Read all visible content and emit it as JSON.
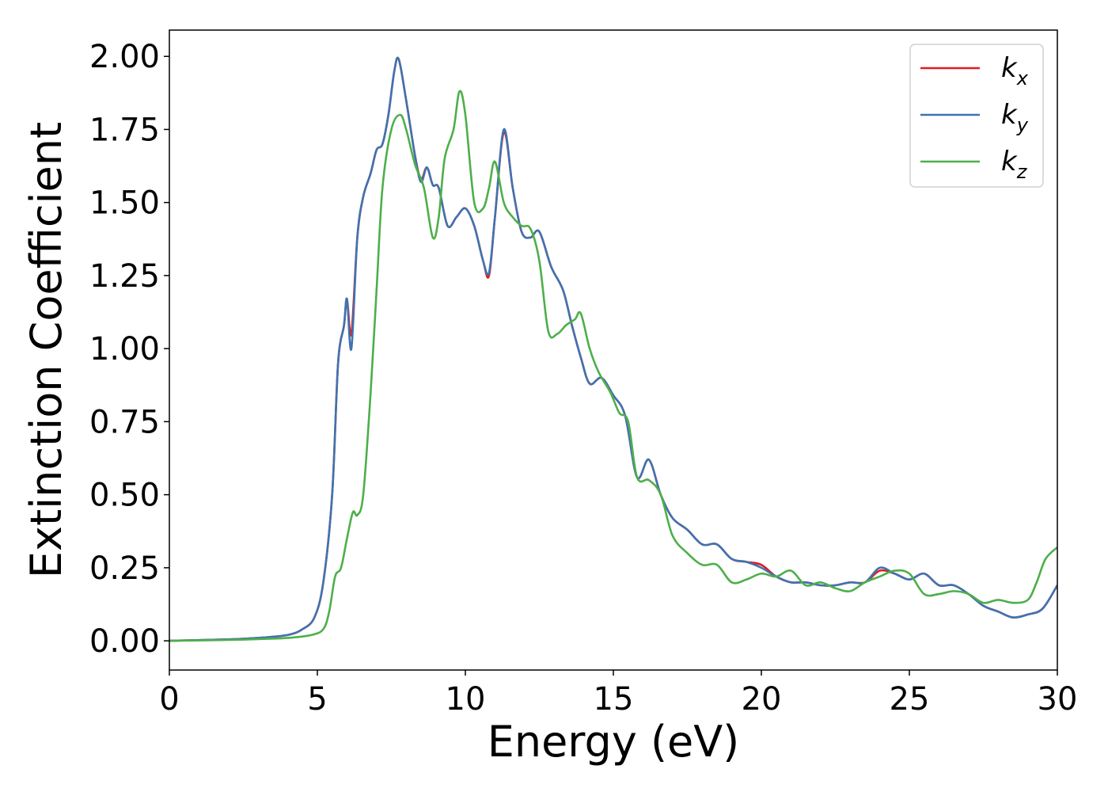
{
  "chart_data": {
    "type": "line",
    "xlabel": "Energy (eV)",
    "ylabel": "Extinction Coefficient",
    "xlim": [
      0,
      30
    ],
    "ylim": [
      -0.1,
      2.09
    ],
    "xticks": [
      "0",
      "5",
      "10",
      "15",
      "20",
      "25",
      "30"
    ],
    "yticks": [
      "0.00",
      "0.25",
      "0.50",
      "0.75",
      "1.00",
      "1.25",
      "1.50",
      "1.75",
      "2.00"
    ],
    "grid": false,
    "legend_position": "top-right",
    "series": [
      {
        "name": "k_x",
        "legend": {
          "base": "k",
          "sub": "x"
        },
        "color": "#e41a1c",
        "x": [
          0,
          2,
          3,
          4,
          4.5,
          4.9,
          5.2,
          5.5,
          5.7,
          5.9,
          6.0,
          6.15,
          6.35,
          6.55,
          6.8,
          7.0,
          7.2,
          7.4,
          7.6,
          7.75,
          8.0,
          8.3,
          8.5,
          8.7,
          8.9,
          9.1,
          9.4,
          9.7,
          10.0,
          10.3,
          10.6,
          10.8,
          11.0,
          11.3,
          11.6,
          11.9,
          12.2,
          12.5,
          12.9,
          13.3,
          13.6,
          13.9,
          14.2,
          14.6,
          15.0,
          15.4,
          15.8,
          16.2,
          16.6,
          17.0,
          17.5,
          18.0,
          18.5,
          19.0,
          19.5,
          20.0,
          20.5,
          21.0,
          21.5,
          22.0,
          22.5,
          23.0,
          23.5,
          24.0,
          24.5,
          25.0,
          25.5,
          26.0,
          26.5,
          27.0,
          27.5,
          28.0,
          28.5,
          29.0,
          29.5,
          30.0
        ],
        "y": [
          0.0,
          0.005,
          0.01,
          0.02,
          0.04,
          0.08,
          0.2,
          0.5,
          0.95,
          1.08,
          1.17,
          1.05,
          1.38,
          1.52,
          1.6,
          1.68,
          1.7,
          1.8,
          1.95,
          1.99,
          1.85,
          1.66,
          1.58,
          1.62,
          1.56,
          1.55,
          1.42,
          1.45,
          1.48,
          1.42,
          1.3,
          1.25,
          1.45,
          1.74,
          1.55,
          1.4,
          1.38,
          1.4,
          1.28,
          1.2,
          1.08,
          0.97,
          0.88,
          0.9,
          0.84,
          0.77,
          0.56,
          0.62,
          0.5,
          0.42,
          0.38,
          0.33,
          0.33,
          0.28,
          0.27,
          0.26,
          0.22,
          0.2,
          0.2,
          0.19,
          0.19,
          0.2,
          0.2,
          0.24,
          0.23,
          0.21,
          0.23,
          0.19,
          0.19,
          0.16,
          0.12,
          0.1,
          0.08,
          0.09,
          0.11,
          0.19
        ]
      },
      {
        "name": "k_y",
        "legend": {
          "base": "k",
          "sub": "y"
        },
        "color": "#3f73b0",
        "x": [
          0,
          2,
          3,
          4,
          4.5,
          4.9,
          5.2,
          5.5,
          5.7,
          5.9,
          6.0,
          6.15,
          6.35,
          6.55,
          6.8,
          7.0,
          7.2,
          7.4,
          7.6,
          7.75,
          8.0,
          8.3,
          8.5,
          8.7,
          8.9,
          9.1,
          9.4,
          9.7,
          10.0,
          10.3,
          10.6,
          10.8,
          11.0,
          11.3,
          11.6,
          11.9,
          12.2,
          12.5,
          12.9,
          13.3,
          13.6,
          13.9,
          14.2,
          14.6,
          15.0,
          15.4,
          15.8,
          16.2,
          16.6,
          17.0,
          17.5,
          18.0,
          18.5,
          19.0,
          19.5,
          20.0,
          20.5,
          21.0,
          21.5,
          22.0,
          22.5,
          23.0,
          23.5,
          24.0,
          24.5,
          25.0,
          25.5,
          26.0,
          26.5,
          27.0,
          27.5,
          28.0,
          28.5,
          29.0,
          29.5,
          30.0
        ],
        "y": [
          0.0,
          0.005,
          0.01,
          0.02,
          0.04,
          0.08,
          0.2,
          0.5,
          0.95,
          1.08,
          1.17,
          1.0,
          1.38,
          1.52,
          1.6,
          1.68,
          1.7,
          1.8,
          1.95,
          1.99,
          1.85,
          1.66,
          1.57,
          1.62,
          1.56,
          1.55,
          1.42,
          1.45,
          1.48,
          1.42,
          1.3,
          1.26,
          1.45,
          1.75,
          1.55,
          1.4,
          1.38,
          1.4,
          1.28,
          1.2,
          1.08,
          0.97,
          0.88,
          0.9,
          0.84,
          0.77,
          0.56,
          0.62,
          0.5,
          0.42,
          0.38,
          0.33,
          0.33,
          0.28,
          0.27,
          0.25,
          0.22,
          0.2,
          0.2,
          0.19,
          0.19,
          0.2,
          0.2,
          0.25,
          0.23,
          0.21,
          0.23,
          0.19,
          0.19,
          0.16,
          0.12,
          0.1,
          0.08,
          0.09,
          0.11,
          0.19
        ]
      },
      {
        "name": "k_z",
        "legend": {
          "base": "k",
          "sub": "z"
        },
        "color": "#4daf4a",
        "x": [
          0,
          2,
          3,
          4,
          4.8,
          5.2,
          5.4,
          5.6,
          5.8,
          6.0,
          6.2,
          6.35,
          6.55,
          6.8,
          7.0,
          7.2,
          7.5,
          7.8,
          8.0,
          8.3,
          8.6,
          8.9,
          9.1,
          9.3,
          9.6,
          9.8,
          10.0,
          10.3,
          10.6,
          10.8,
          11.0,
          11.3,
          11.6,
          11.9,
          12.2,
          12.5,
          12.8,
          13.1,
          13.4,
          13.7,
          13.9,
          14.2,
          14.5,
          14.9,
          15.2,
          15.5,
          15.8,
          16.2,
          16.6,
          17.0,
          17.5,
          18.0,
          18.5,
          19.0,
          19.5,
          20.0,
          20.5,
          21.0,
          21.5,
          22.0,
          22.5,
          23.0,
          23.5,
          24.0,
          24.5,
          25.0,
          25.5,
          26.0,
          26.5,
          27.0,
          27.5,
          28.0,
          28.5,
          29.0,
          29.3,
          29.6,
          30.0
        ],
        "y": [
          0.0,
          0.003,
          0.006,
          0.01,
          0.02,
          0.04,
          0.1,
          0.22,
          0.25,
          0.35,
          0.44,
          0.43,
          0.5,
          0.85,
          1.2,
          1.55,
          1.75,
          1.8,
          1.75,
          1.63,
          1.55,
          1.38,
          1.45,
          1.65,
          1.75,
          1.88,
          1.8,
          1.5,
          1.48,
          1.55,
          1.64,
          1.5,
          1.45,
          1.42,
          1.41,
          1.3,
          1.06,
          1.05,
          1.08,
          1.1,
          1.12,
          1.0,
          0.92,
          0.85,
          0.78,
          0.75,
          0.56,
          0.55,
          0.5,
          0.36,
          0.3,
          0.26,
          0.26,
          0.2,
          0.21,
          0.23,
          0.22,
          0.24,
          0.19,
          0.2,
          0.18,
          0.17,
          0.2,
          0.22,
          0.24,
          0.23,
          0.16,
          0.16,
          0.17,
          0.16,
          0.13,
          0.14,
          0.13,
          0.14,
          0.2,
          0.28,
          0.32
        ]
      }
    ]
  }
}
